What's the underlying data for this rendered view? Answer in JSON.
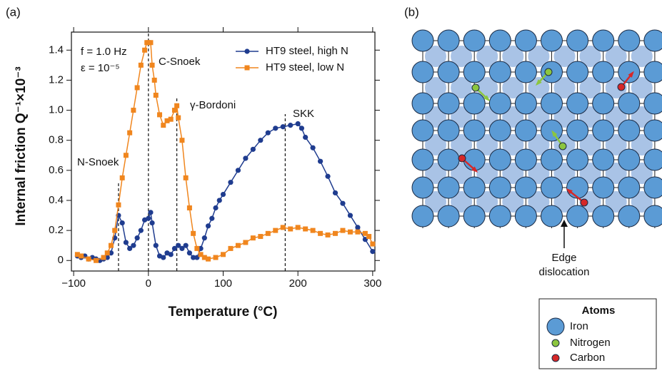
{
  "chart_data": {
    "type": "line",
    "panel_label": "(a)",
    "x_label": "Temperature (°C)",
    "y_label": "Internal friction Q⁻¹×10⁻³",
    "annotations": [
      "f = 1.0 Hz",
      "ε = 10⁻⁵",
      "C-Snoek",
      "γ-Bordoni",
      "SKK",
      "N-Snoek"
    ],
    "vlines": [
      -40,
      0,
      38,
      183
    ],
    "xlim": [
      -103,
      303
    ],
    "ylim": [
      -0.07,
      1.52
    ],
    "xticks": [
      {
        "value": -100,
        "label": "−100"
      },
      0,
      100,
      200,
      300
    ],
    "yticks": [
      0,
      0.2,
      0.4,
      0.6,
      0.8,
      {
        "value": 1,
        "label": "1.0"
      },
      1.2,
      1.4
    ],
    "legend": "upper right",
    "series": [
      {
        "name": "HT9 steel, high N",
        "color": "#1f3c8f",
        "marker": "circle",
        "x": [
          -95,
          -90,
          -85,
          -80,
          -75,
          -70,
          -65,
          -60,
          -55,
          -50,
          -45,
          -40,
          -35,
          -30,
          -25,
          -20,
          -15,
          -10,
          -5,
          0,
          3,
          5,
          10,
          15,
          20,
          25,
          30,
          35,
          40,
          45,
          50,
          55,
          60,
          65,
          70,
          75,
          80,
          85,
          90,
          95,
          100,
          110,
          120,
          130,
          140,
          150,
          160,
          170,
          180,
          190,
          200,
          205,
          210,
          220,
          230,
          240,
          250,
          260,
          270,
          280,
          290,
          300
        ],
        "values": [
          0.03,
          0.02,
          0.03,
          0.01,
          0.02,
          0.01,
          0,
          0.01,
          0.02,
          0.05,
          0.15,
          0.3,
          0.25,
          0.12,
          0.08,
          0.1,
          0.15,
          0.2,
          0.27,
          0.28,
          0.32,
          0.25,
          0.1,
          0.03,
          0.02,
          0.05,
          0.04,
          0.08,
          0.1,
          0.08,
          0.1,
          0.05,
          0.02,
          0.02,
          0.08,
          0.15,
          0.23,
          0.28,
          0.35,
          0.4,
          0.44,
          0.52,
          0.6,
          0.68,
          0.74,
          0.8,
          0.85,
          0.88,
          0.89,
          0.9,
          0.91,
          0.88,
          0.82,
          0.75,
          0.66,
          0.56,
          0.45,
          0.38,
          0.3,
          0.22,
          0.14,
          0.06
        ]
      },
      {
        "name": "HT9 steel, low N",
        "color": "#f0861e",
        "marker": "square",
        "x": [
          -95,
          -90,
          -80,
          -70,
          -60,
          -55,
          -50,
          -45,
          -40,
          -35,
          -30,
          -25,
          -20,
          -15,
          -10,
          -5,
          -2,
          0,
          3,
          5,
          8,
          10,
          15,
          20,
          25,
          30,
          35,
          38,
          40,
          45,
          50,
          55,
          60,
          65,
          70,
          75,
          80,
          90,
          100,
          110,
          120,
          130,
          140,
          150,
          160,
          170,
          180,
          190,
          200,
          210,
          220,
          230,
          240,
          250,
          260,
          270,
          280,
          290,
          295,
          300
        ],
        "values": [
          0.04,
          0.03,
          0.01,
          0,
          0.02,
          0.05,
          0.1,
          0.2,
          0.37,
          0.55,
          0.7,
          0.85,
          1,
          1.15,
          1.3,
          1.4,
          1.45,
          1.45,
          1.45,
          1.3,
          1.2,
          1.1,
          0.97,
          0.9,
          0.93,
          0.94,
          1,
          1.03,
          0.95,
          0.8,
          0.55,
          0.35,
          0.18,
          0.08,
          0.04,
          0.02,
          0.01,
          0.02,
          0.04,
          0.08,
          0.1,
          0.12,
          0.15,
          0.16,
          0.18,
          0.2,
          0.22,
          0.21,
          0.22,
          0.21,
          0.2,
          0.18,
          0.17,
          0.18,
          0.2,
          0.19,
          0.19,
          0.18,
          0.16,
          0.11
        ]
      }
    ]
  },
  "diagram": {
    "panel_label": "(b)",
    "annotation_lines": [
      "Edge",
      "dislocation"
    ],
    "legend": {
      "title": "Atoms",
      "items": [
        "Iron",
        "Nitrogen",
        "Carbon"
      ]
    }
  }
}
